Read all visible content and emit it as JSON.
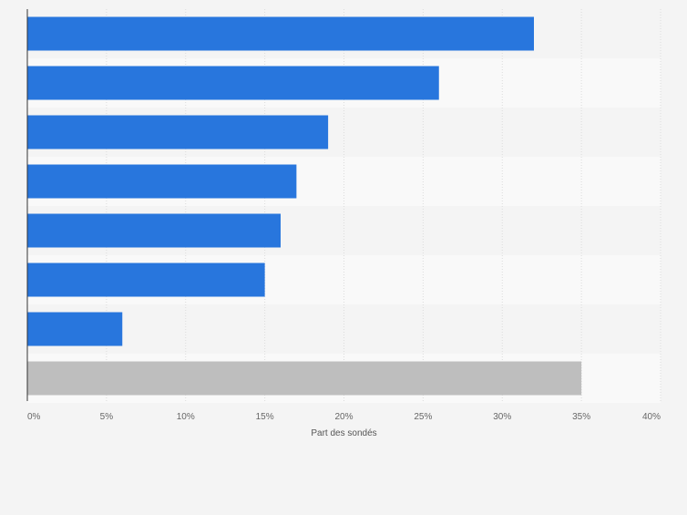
{
  "chart_data": {
    "type": "bar",
    "orientation": "horizontal",
    "title": "",
    "categories": [
      "",
      "",
      "",
      "",
      "",
      "",
      "",
      ""
    ],
    "values": [
      32,
      26,
      19,
      17,
      16,
      15,
      6,
      35
    ],
    "bar_colors": [
      "#2876dd",
      "#2876dd",
      "#2876dd",
      "#2876dd",
      "#2876dd",
      "#2876dd",
      "#2876dd",
      "#bebebe"
    ],
    "xlim": [
      0,
      40
    ],
    "xticks": [
      0,
      5,
      10,
      15,
      20,
      25,
      30,
      35,
      40
    ],
    "xtick_labels": [
      "0%",
      "5%",
      "10%",
      "15%",
      "20%",
      "25%",
      "30%",
      "35%",
      "40%"
    ],
    "xlabel": "Part des sondés",
    "ylabel": "",
    "grid": true,
    "legend": "none"
  },
  "colors": {
    "accent": "#2876dd",
    "other": "#bebebe",
    "background": "#f4f4f4",
    "band_light": "#f9f9f9",
    "band_dark": "#f4f4f4",
    "gridline": "#dcdcdc"
  }
}
